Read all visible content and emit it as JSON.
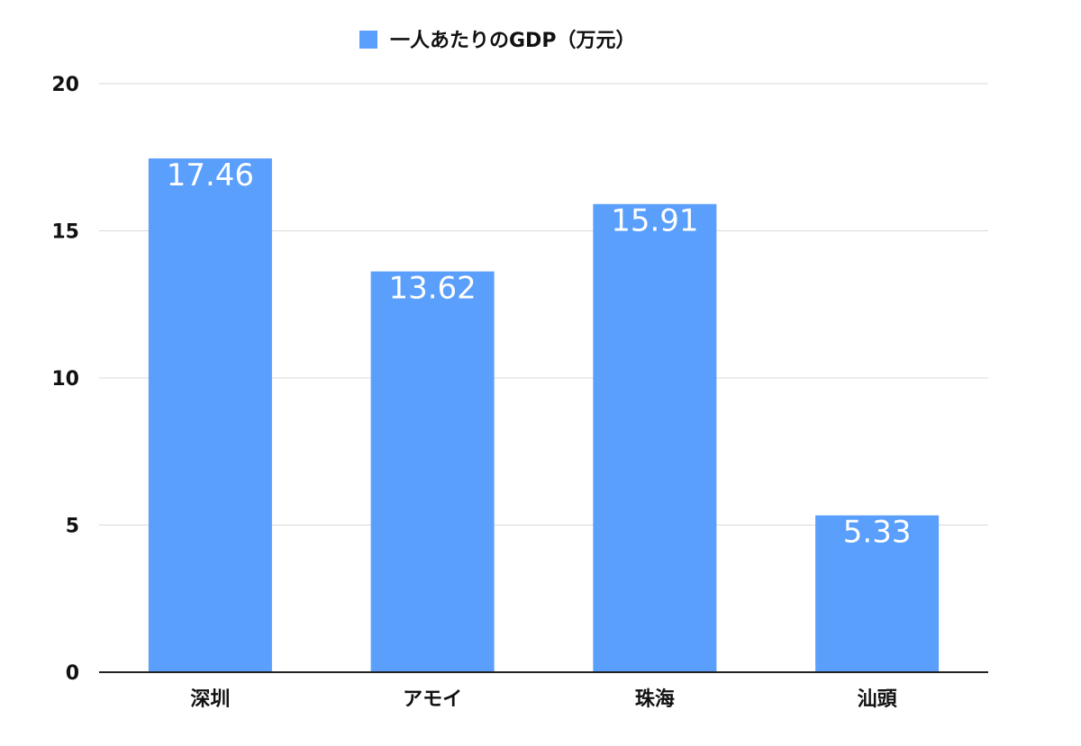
{
  "chart_data": {
    "type": "bar",
    "categories": [
      "深圳",
      "アモイ",
      "珠海",
      "汕頭"
    ],
    "series": [
      {
        "name": "一人あたりのGDP（万元）",
        "values": [
          17.46,
          13.62,
          15.91,
          5.33
        ],
        "data_labels": [
          "17.46",
          "13.62",
          "15.91",
          "5.33"
        ]
      }
    ],
    "y_ticks": [
      0,
      5,
      10,
      15,
      20
    ],
    "ylim": [
      0,
      20
    ],
    "grid": true,
    "legend_position": "top",
    "colors": {
      "bar": "#5b9ffc",
      "grid": "#d9d9d9",
      "axis": "#222222"
    }
  }
}
